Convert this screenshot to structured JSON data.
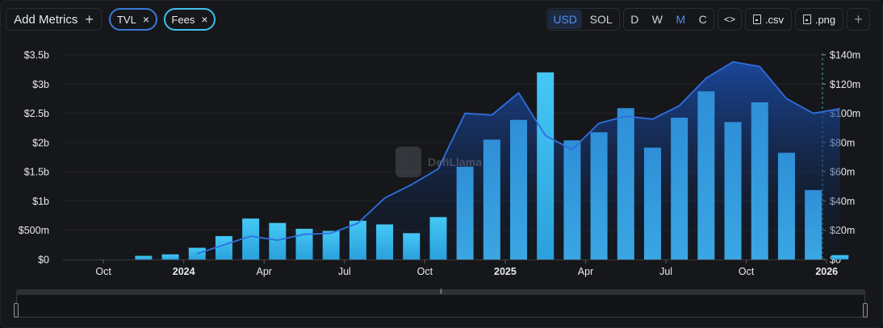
{
  "toolbar": {
    "add_metrics_label": "Add Metrics",
    "add_metrics_icon": "plus-icon",
    "pills": [
      {
        "label": "TVL",
        "close": "×",
        "color": "#3a78d6"
      },
      {
        "label": "Fees",
        "close": "×",
        "color": "#3ec0f0"
      }
    ],
    "currency": {
      "options": [
        "USD",
        "SOL"
      ],
      "selected": "USD"
    },
    "granularity": {
      "options": [
        "D",
        "W",
        "M",
        "C"
      ],
      "selected": "M"
    },
    "embed_label": "<>",
    "csv_label": ".csv",
    "png_label": ".png",
    "add_label": "+"
  },
  "watermark": "DefiLlama",
  "colors": {
    "tvl_line": "#2f6fe0",
    "tvl_fill_top": "#1b4fb0",
    "fees_bar_bright": "#3ec0f0",
    "fees_bar_dim": "#2a8ed0",
    "background": "#16171a"
  },
  "chart_data": {
    "type": "bar",
    "x": [
      "2023-09",
      "2023-10",
      "2023-11",
      "2023-12",
      "2024-01",
      "2024-02",
      "2024-03",
      "2024-04",
      "2024-05",
      "2024-06",
      "2024-07",
      "2024-08",
      "2024-09",
      "2024-10",
      "2024-11",
      "2024-12",
      "2025-01",
      "2025-02",
      "2025-03",
      "2025-04",
      "2025-05",
      "2025-06",
      "2025-07",
      "2025-08",
      "2025-09",
      "2025-10",
      "2025-11",
      "2025-12",
      "2026-01"
    ],
    "x_tick_labels": [
      {
        "label": "Oct",
        "at": "2023-10-01",
        "bold": false
      },
      {
        "label": "2024",
        "at": "2024-01-01",
        "bold": true
      },
      {
        "label": "Apr",
        "at": "2024-04-01",
        "bold": false
      },
      {
        "label": "Jul",
        "at": "2024-07-01",
        "bold": false
      },
      {
        "label": "Oct",
        "at": "2024-10-01",
        "bold": false
      },
      {
        "label": "2025",
        "at": "2025-01-01",
        "bold": true
      },
      {
        "label": "Apr",
        "at": "2025-04-01",
        "bold": false
      },
      {
        "label": "Jul",
        "at": "2025-07-01",
        "bold": false
      },
      {
        "label": "Oct",
        "at": "2025-10-01",
        "bold": false
      },
      {
        "label": "2026",
        "at": "2026-01-01",
        "bold": true
      }
    ],
    "series": [
      {
        "name": "TVL",
        "kind": "area",
        "axis": "left",
        "values": [
          null,
          null,
          null,
          null,
          0.1,
          0.25,
          0.4,
          0.33,
          0.43,
          0.45,
          0.62,
          1.05,
          1.28,
          1.55,
          2.5,
          2.47,
          2.85,
          2.12,
          1.88,
          2.33,
          2.45,
          2.4,
          2.63,
          3.1,
          3.38,
          3.3,
          2.75,
          2.5,
          2.58
        ]
      },
      {
        "name": "Fees",
        "kind": "bar",
        "axis": "right",
        "values": [
          0,
          0,
          2.5,
          3.5,
          8,
          16,
          28,
          25,
          21,
          19.5,
          26.5,
          24,
          18,
          29,
          63.5,
          82,
          95.5,
          128,
          81.5,
          87,
          103.5,
          76.5,
          97,
          115,
          94,
          107.5,
          73,
          47.5,
          3
        ]
      }
    ],
    "y_left": {
      "ticks": [
        "$0",
        "$500m",
        "$1b",
        "$1.5b",
        "$2b",
        "$2.5b",
        "$3b",
        "$3.5b"
      ],
      "range": [
        0,
        3.5
      ],
      "unit": "b"
    },
    "y_right": {
      "ticks": [
        "$0",
        "$20m",
        "$40m",
        "$60m",
        "$80m",
        "$100m",
        "$120m",
        "$140m"
      ],
      "range": [
        0,
        140
      ],
      "unit": "m"
    },
    "bright_bars": [
      "2023-11",
      "2023-12",
      "2024-01",
      "2024-02",
      "2024-03",
      "2024-04",
      "2024-05",
      "2024-06",
      "2024-07",
      "2024-08",
      "2024-09",
      "2024-10",
      "2025-02",
      "2026-01"
    ],
    "grid": true,
    "legend": "none"
  }
}
